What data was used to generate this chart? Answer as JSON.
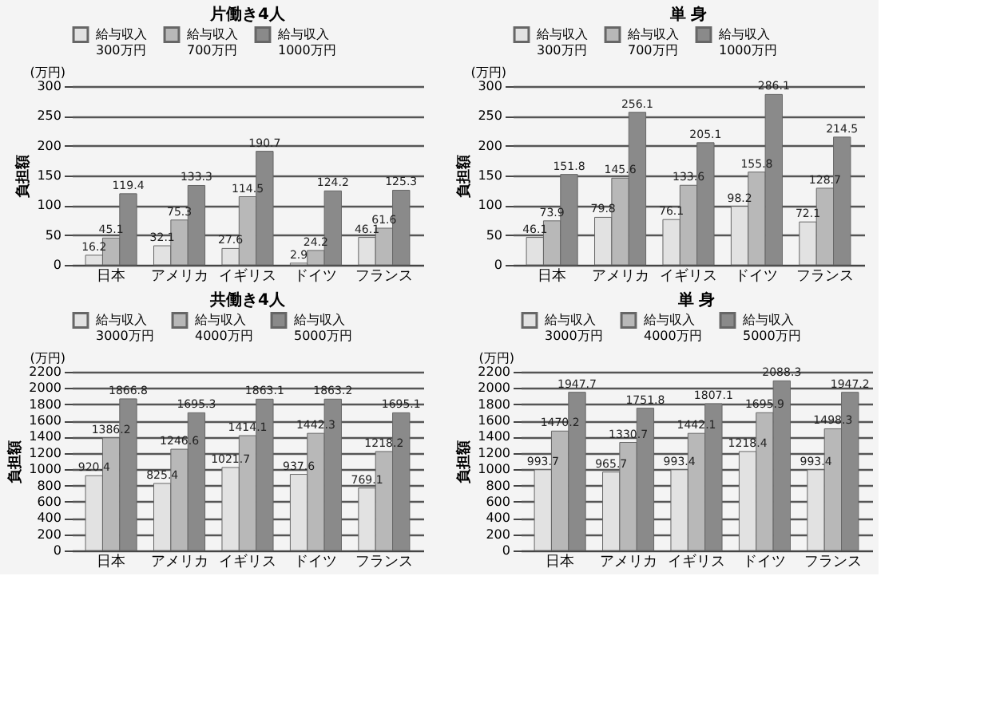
{
  "chart_data": [
    {
      "type": "bar",
      "title": "片働き4人",
      "ylabel": "負担額",
      "annotations": [
        "(万円)"
      ],
      "categories": [
        "日本",
        "アメリカ",
        "イギリス",
        "ドイツ",
        "フランス"
      ],
      "ylim": [
        0,
        300
      ],
      "yticks": [
        0,
        50,
        100,
        150,
        200,
        250,
        300
      ],
      "grid": "y",
      "legend": "top",
      "data_labels": true,
      "series": [
        {
          "name": "給与収入\n300万円",
          "color": "#e2e2e2",
          "values": [
            16.2,
            32.1,
            27.6,
            2.9,
            46.1
          ]
        },
        {
          "name": "給与収入\n700万円",
          "color": "#b8b8b8",
          "values": [
            45.1,
            75.3,
            114.5,
            24.2,
            61.6
          ]
        },
        {
          "name": "給与収入\n1000万円",
          "color": "#8a8a8a",
          "values": [
            119.4,
            133.3,
            190.7,
            124.2,
            125.3
          ]
        }
      ]
    },
    {
      "type": "bar",
      "title": "単 身",
      "ylabel": "負担額",
      "annotations": [
        "(万円)"
      ],
      "categories": [
        "日本",
        "アメリカ",
        "イギリス",
        "ドイツ",
        "フランス"
      ],
      "ylim": [
        0,
        300
      ],
      "yticks": [
        0,
        50,
        100,
        150,
        200,
        250,
        300
      ],
      "grid": "y",
      "legend": "top",
      "data_labels": true,
      "series": [
        {
          "name": "給与収入\n300万円",
          "color": "#e2e2e2",
          "values": [
            46.1,
            79.8,
            76.1,
            98.2,
            72.1
          ]
        },
        {
          "name": "給与収入\n700万円",
          "color": "#b8b8b8",
          "values": [
            73.9,
            145.6,
            133.6,
            155.8,
            128.7
          ]
        },
        {
          "name": "給与収入\n1000万円",
          "color": "#8a8a8a",
          "values": [
            151.8,
            256.1,
            205.1,
            286.1,
            214.5
          ]
        }
      ]
    },
    {
      "type": "bar",
      "title": "共働き4人",
      "ylabel": "負担額",
      "annotations": [
        "(万円)"
      ],
      "categories": [
        "日本",
        "アメリカ",
        "イギリス",
        "ドイツ",
        "フランス"
      ],
      "ylim": [
        0,
        2200
      ],
      "yticks": [
        0,
        200,
        400,
        600,
        800,
        1000,
        1200,
        1400,
        1600,
        1800,
        2000,
        2200
      ],
      "grid": "y",
      "legend": "top",
      "data_labels": true,
      "series": [
        {
          "name": "給与収入\n3000万円",
          "color": "#e2e2e2",
          "values": [
            920.4,
            825.4,
            1021.7,
            937.6,
            769.1
          ]
        },
        {
          "name": "給与収入\n4000万円",
          "color": "#b8b8b8",
          "values": [
            1386.2,
            1246.6,
            1414.1,
            1442.3,
            1218.2
          ]
        },
        {
          "name": "給与収入\n5000万円",
          "color": "#8a8a8a",
          "values": [
            1866.8,
            1695.3,
            1863.1,
            1863.2,
            1695.1
          ]
        }
      ]
    },
    {
      "type": "bar",
      "title": "単 身",
      "ylabel": "負担額",
      "annotations": [
        "(万円)"
      ],
      "categories": [
        "日本",
        "アメリカ",
        "イギリス",
        "ドイツ",
        "フランス"
      ],
      "ylim": [
        0,
        2200
      ],
      "yticks": [
        0,
        200,
        400,
        600,
        800,
        1000,
        1200,
        1400,
        1600,
        1800,
        2000,
        2200
      ],
      "grid": "y",
      "legend": "top",
      "data_labels": true,
      "series": [
        {
          "name": "給与収入\n3000万円",
          "color": "#e2e2e2",
          "values": [
            993.7,
            965.7,
            993.4,
            1218.4,
            993.4
          ]
        },
        {
          "name": "給与収入\n4000万円",
          "color": "#b8b8b8",
          "values": [
            1470.2,
            1330.7,
            1442.1,
            1695.9,
            1498.3
          ]
        },
        {
          "name": "給与収入\n5000万円",
          "color": "#8a8a8a",
          "values": [
            1947.7,
            1751.8,
            1807.1,
            2088.3,
            1947.2
          ]
        }
      ]
    }
  ]
}
